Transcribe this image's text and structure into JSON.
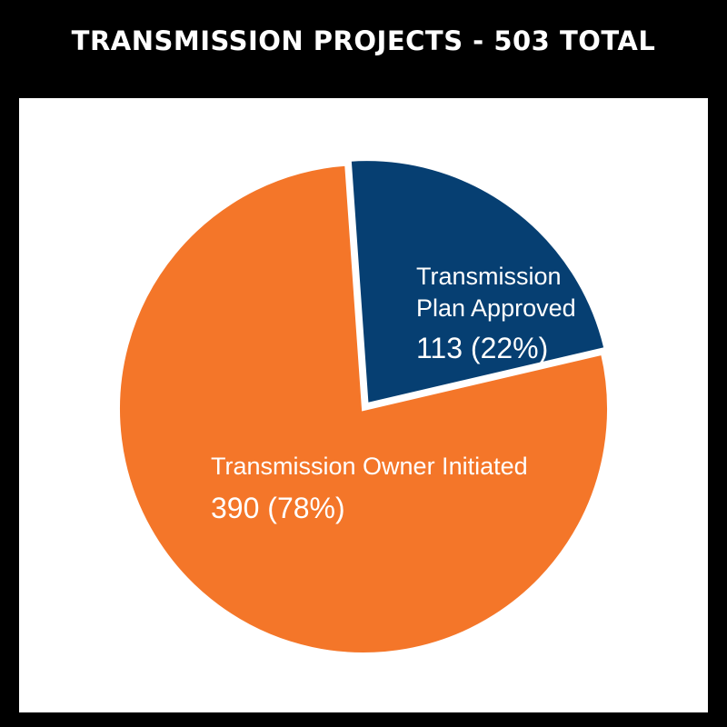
{
  "chart_data": {
    "type": "pie",
    "title": "TRANSMISSION PROJECTS - 503 TOTAL",
    "slices": [
      {
        "name_lines": [
          "Transmission",
          "Plan Approved"
        ],
        "value": 113,
        "value_label": "113 (22%)",
        "color": "#063f72"
      },
      {
        "name_lines": [
          "Transmission Owner Initiated"
        ],
        "value": 390,
        "value_label": "390 (78%)",
        "color": "#f47629"
      }
    ],
    "legend": "none",
    "separator_color": "#ffffff"
  }
}
